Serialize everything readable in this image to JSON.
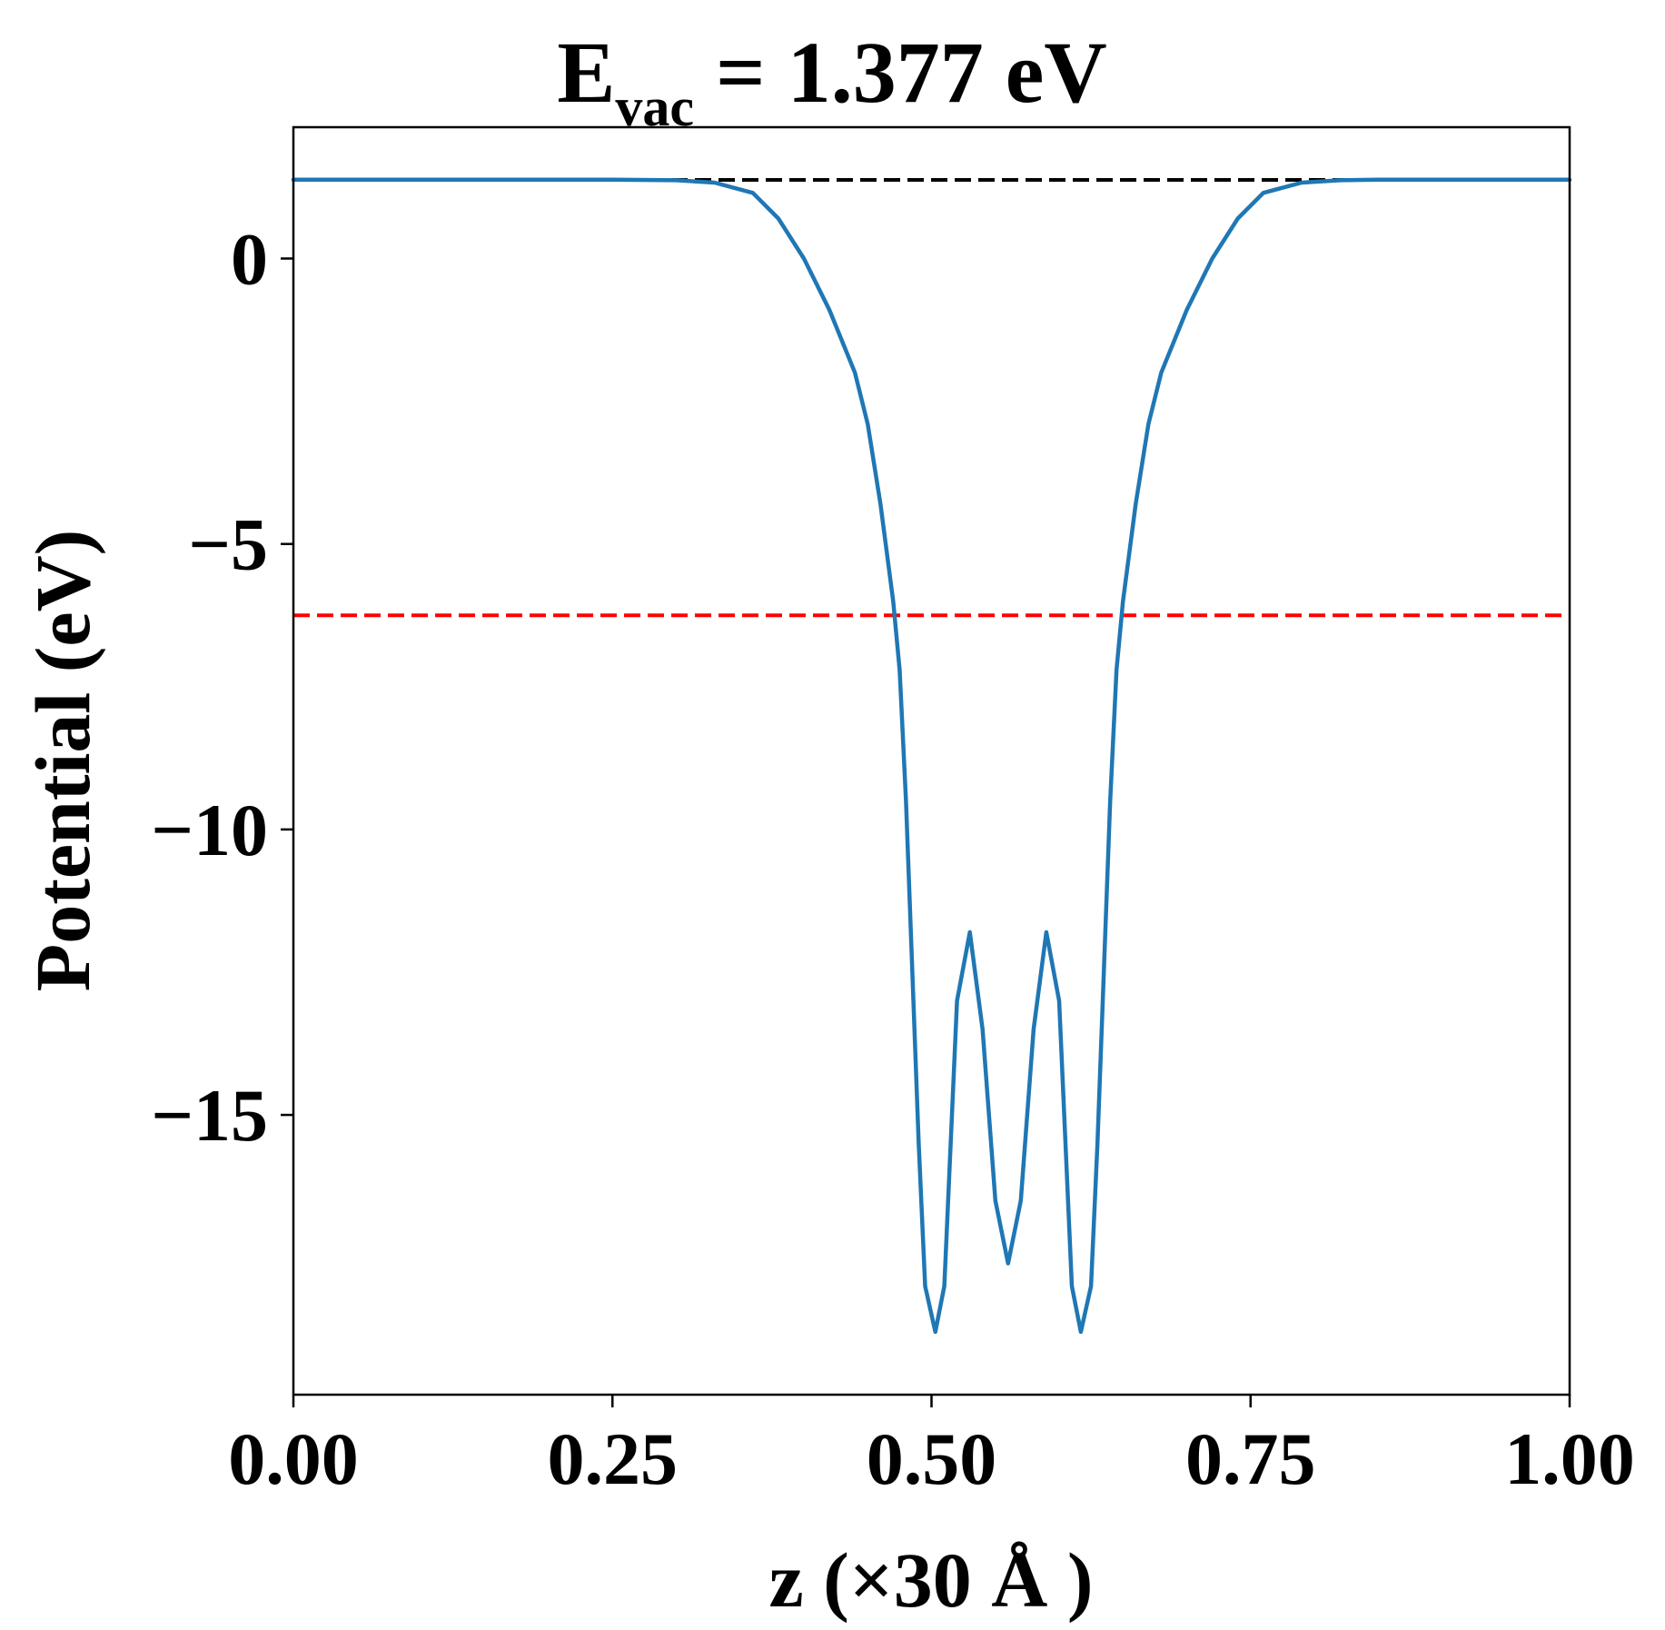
{
  "chart_data": {
    "type": "line",
    "title": {
      "prefix": "E",
      "subscript": "vac",
      "suffix": " = 1.377 eV"
    },
    "xlabel": "z (×30 Å )",
    "ylabel": "Potential (eV)",
    "xlim": [
      0.0,
      1.0
    ],
    "ylim": [
      -19.9,
      2.3
    ],
    "x_ticks": [
      0.0,
      0.25,
      0.5,
      0.75,
      1.0
    ],
    "x_tick_labels": [
      "0.00",
      "0.25",
      "0.50",
      "0.75",
      "1.00"
    ],
    "y_ticks": [
      0,
      -5,
      -10,
      -15
    ],
    "y_tick_labels": [
      "0",
      "−5",
      "−10",
      "−15"
    ],
    "grid": false,
    "reference_lines": [
      {
        "y": 1.377,
        "color": "#000000",
        "style": "dashed"
      },
      {
        "y": -6.25,
        "color": "#ff0000",
        "style": "dashed"
      }
    ],
    "series": [
      {
        "color": "#1f77b4",
        "points": [
          [
            0.0,
            1.38
          ],
          [
            0.05,
            1.38
          ],
          [
            0.1,
            1.38
          ],
          [
            0.15,
            1.38
          ],
          [
            0.2,
            1.38
          ],
          [
            0.25,
            1.38
          ],
          [
            0.3,
            1.37
          ],
          [
            0.33,
            1.33
          ],
          [
            0.36,
            1.15
          ],
          [
            0.38,
            0.7
          ],
          [
            0.4,
            0.0
          ],
          [
            0.42,
            -0.9
          ],
          [
            0.44,
            -2.0
          ],
          [
            0.45,
            -2.9
          ],
          [
            0.46,
            -4.3
          ],
          [
            0.47,
            -6.0
          ],
          [
            0.475,
            -7.2
          ],
          [
            0.48,
            -9.5
          ],
          [
            0.485,
            -12.5
          ],
          [
            0.49,
            -15.5
          ],
          [
            0.495,
            -18.0
          ],
          [
            0.503,
            -18.8
          ],
          [
            0.51,
            -18.0
          ],
          [
            0.515,
            -15.5
          ],
          [
            0.52,
            -13.0
          ],
          [
            0.53,
            -11.8
          ],
          [
            0.54,
            -13.5
          ],
          [
            0.55,
            -16.5
          ],
          [
            0.56,
            -17.6
          ],
          [
            0.57,
            -16.5
          ],
          [
            0.58,
            -13.5
          ],
          [
            0.59,
            -11.8
          ],
          [
            0.6,
            -13.0
          ],
          [
            0.605,
            -15.5
          ],
          [
            0.61,
            -18.0
          ],
          [
            0.617,
            -18.8
          ],
          [
            0.625,
            -18.0
          ],
          [
            0.63,
            -15.5
          ],
          [
            0.635,
            -12.5
          ],
          [
            0.64,
            -9.5
          ],
          [
            0.645,
            -7.2
          ],
          [
            0.65,
            -6.0
          ],
          [
            0.66,
            -4.3
          ],
          [
            0.67,
            -2.9
          ],
          [
            0.68,
            -2.0
          ],
          [
            0.7,
            -0.9
          ],
          [
            0.72,
            0.0
          ],
          [
            0.74,
            0.7
          ],
          [
            0.76,
            1.15
          ],
          [
            0.79,
            1.33
          ],
          [
            0.82,
            1.37
          ],
          [
            0.85,
            1.38
          ],
          [
            0.9,
            1.38
          ],
          [
            0.95,
            1.38
          ],
          [
            1.0,
            1.38
          ]
        ]
      }
    ]
  }
}
